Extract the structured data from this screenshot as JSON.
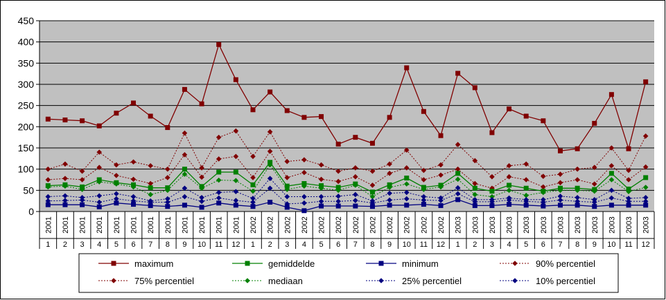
{
  "chart_data": {
    "type": "line",
    "title": "",
    "xlabel": "",
    "ylabel": "",
    "ylim": [
      0,
      450
    ],
    "yticks": [
      "0",
      "50",
      "100",
      "150",
      "200",
      "250",
      "300",
      "350",
      "400",
      "450"
    ],
    "grid": true,
    "legend_position": "bottom",
    "plot_background": "#c0c0c0",
    "categories": [
      {
        "year": "2001",
        "month": "1"
      },
      {
        "year": "2001",
        "month": "2"
      },
      {
        "year": "2001",
        "month": "3"
      },
      {
        "year": "2001",
        "month": "4"
      },
      {
        "year": "2001",
        "month": "5"
      },
      {
        "year": "2001",
        "month": "6"
      },
      {
        "year": "2001",
        "month": "7"
      },
      {
        "year": "2001",
        "month": "8"
      },
      {
        "year": "2001",
        "month": "9"
      },
      {
        "year": "2001",
        "month": "10"
      },
      {
        "year": "2001",
        "month": "11"
      },
      {
        "year": "2001",
        "month": "12"
      },
      {
        "year": "2002",
        "month": "1"
      },
      {
        "year": "2002",
        "month": "2"
      },
      {
        "year": "2002",
        "month": "3"
      },
      {
        "year": "2002",
        "month": "4"
      },
      {
        "year": "2002",
        "month": "5"
      },
      {
        "year": "2002",
        "month": "6"
      },
      {
        "year": "2002",
        "month": "7"
      },
      {
        "year": "2002",
        "month": "8"
      },
      {
        "year": "2002",
        "month": "9"
      },
      {
        "year": "2002",
        "month": "10"
      },
      {
        "year": "2002",
        "month": "11"
      },
      {
        "year": "2002",
        "month": "12"
      },
      {
        "year": "2003",
        "month": "1"
      },
      {
        "year": "2003",
        "month": "2"
      },
      {
        "year": "2003",
        "month": "3"
      },
      {
        "year": "2003",
        "month": "4"
      },
      {
        "year": "2003",
        "month": "5"
      },
      {
        "year": "2003",
        "month": "6"
      },
      {
        "year": "2003",
        "month": "7"
      },
      {
        "year": "2003",
        "month": "8"
      },
      {
        "year": "2003",
        "month": "9"
      },
      {
        "year": "2003",
        "month": "10"
      },
      {
        "year": "2003",
        "month": "11"
      },
      {
        "year": "2003",
        "month": "12"
      }
    ],
    "series": [
      {
        "name": "maximum",
        "color": "#800000",
        "marker": "square",
        "dashed": false,
        "values": [
          218,
          216,
          214,
          202,
          232,
          256,
          225,
          198,
          288,
          254,
          394,
          311,
          240,
          282,
          238,
          222,
          224,
          159,
          175,
          161,
          222,
          339,
          236,
          179,
          326,
          292,
          186,
          242,
          225,
          214,
          143,
          148,
          208,
          276,
          148,
          306
        ]
      },
      {
        "name": "gemiddelde",
        "color": "#008000",
        "marker": "square",
        "dashed": false,
        "values": [
          61,
          63,
          58,
          75,
          68,
          63,
          56,
          56,
          100,
          59,
          93,
          93,
          63,
          116,
          60,
          66,
          61,
          57,
          65,
          46,
          63,
          79,
          57,
          62,
          90,
          55,
          48,
          62,
          55,
          48,
          55,
          55,
          52,
          90,
          53,
          80
        ]
      },
      {
        "name": "minimum",
        "color": "#000080",
        "marker": "square",
        "dashed": false,
        "values": [
          16,
          16,
          16,
          11,
          20,
          17,
          14,
          12,
          15,
          10,
          20,
          15,
          12,
          22,
          10,
          2,
          13,
          13,
          13,
          12,
          15,
          15,
          17,
          14,
          28,
          14,
          14,
          17,
          15,
          13,
          15,
          15,
          12,
          15,
          15,
          15
        ]
      },
      {
        "name": "90% percentiel",
        "color": "#800000",
        "marker": "diamond",
        "dashed": true,
        "values": [
          100,
          112,
          95,
          140,
          110,
          117,
          108,
          100,
          185,
          103,
          175,
          190,
          130,
          188,
          118,
          122,
          110,
          95,
          103,
          95,
          112,
          145,
          97,
          110,
          158,
          120,
          82,
          108,
          112,
          83,
          88,
          100,
          104,
          150,
          97,
          178
        ]
      },
      {
        "name": "75% percentiel",
        "color": "#800000",
        "marker": "diamond",
        "dashed": true,
        "values": [
          75,
          78,
          75,
          104,
          85,
          76,
          66,
          80,
          134,
          81,
          124,
          130,
          80,
          142,
          80,
          92,
          76,
          71,
          82,
          62,
          90,
          103,
          75,
          86,
          100,
          66,
          55,
          82,
          75,
          58,
          68,
          75,
          65,
          108,
          75,
          105
        ]
      },
      {
        "name": "mediaan",
        "color": "#008000",
        "marker": "diamond",
        "dashed": true,
        "values": [
          58,
          60,
          52,
          70,
          65,
          58,
          40,
          50,
          88,
          55,
          74,
          73,
          48,
          110,
          52,
          60,
          55,
          50,
          62,
          35,
          57,
          65,
          52,
          58,
          76,
          40,
          35,
          50,
          38,
          45,
          50,
          50,
          48,
          75,
          47,
          57
        ]
      },
      {
        "name": "25% percentiel",
        "color": "#000080",
        "marker": "diamond",
        "dashed": true,
        "values": [
          35,
          37,
          33,
          37,
          42,
          35,
          25,
          30,
          55,
          33,
          45,
          47,
          31,
          78,
          35,
          35,
          35,
          36,
          40,
          25,
          43,
          45,
          35,
          32,
          56,
          28,
          28,
          32,
          28,
          28,
          36,
          33,
          28,
          50,
          31,
          33
        ]
      },
      {
        "name": "10% percentiel",
        "color": "#000080",
        "marker": "diamond",
        "dashed": true,
        "values": [
          25,
          26,
          27,
          22,
          30,
          25,
          22,
          22,
          35,
          24,
          32,
          26,
          22,
          55,
          18,
          20,
          24,
          24,
          26,
          20,
          27,
          30,
          27,
          26,
          42,
          23,
          23,
          27,
          24,
          22,
          27,
          24,
          22,
          32,
          24,
          24
        ]
      }
    ]
  }
}
